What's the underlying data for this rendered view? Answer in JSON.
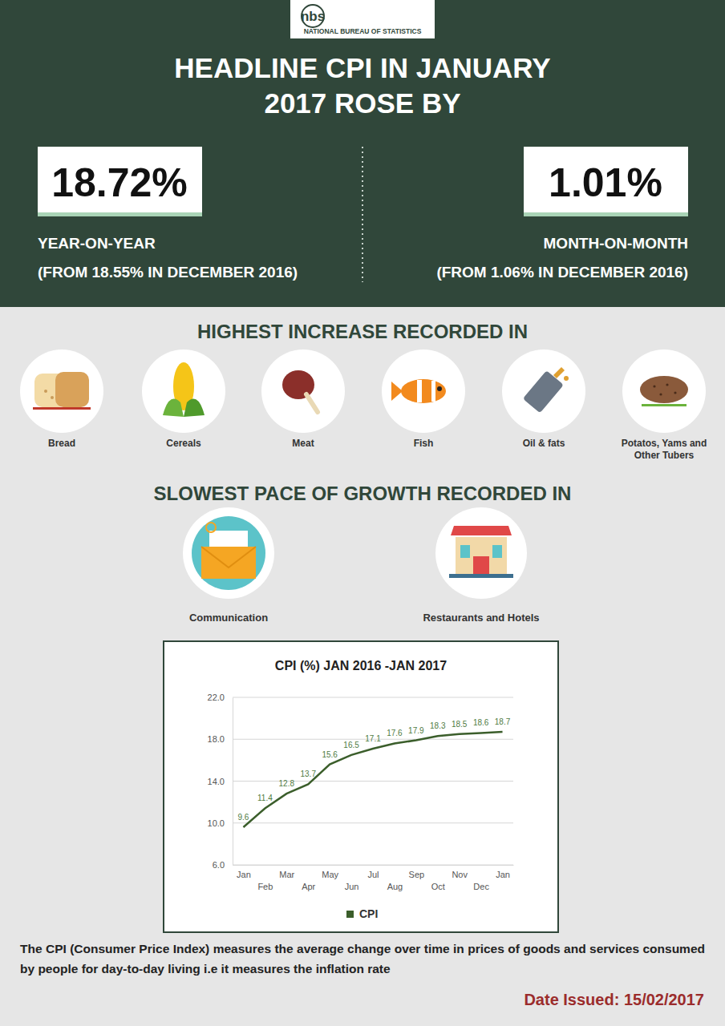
{
  "header": {
    "logo": "nbs",
    "agency": "NATIONAL BUREAU OF STATISTICS",
    "title_line1": "HEADLINE CPI IN JANUARY",
    "title_line2": "2017 ROSE BY"
  },
  "yoy": {
    "figure": "18.72%",
    "label": "YEAR-ON-YEAR",
    "note": "(FROM 18.55% IN DECEMBER 2016)"
  },
  "mom": {
    "figure": "1.01%",
    "label": "MONTH-ON-MONTH",
    "note": "(FROM 1.06% IN DECEMBER 2016)"
  },
  "highest": {
    "heading": "HIGHEST INCREASE RECORDED IN",
    "items": [
      "Bread",
      "Cereals",
      "Meat",
      "Fish",
      "Oil & fats",
      "Potatos, Yams and Other Tubers"
    ]
  },
  "slowest": {
    "heading": "SLOWEST PACE OF GROWTH RECORDED IN",
    "items": [
      "Communication",
      "Restaurants and Hotels"
    ]
  },
  "chart_data": {
    "type": "line",
    "title": "CPI (%) JAN 2016 -JAN 2017",
    "categories": [
      "Jan",
      "Feb",
      "Mar",
      "Apr",
      "May",
      "Jun",
      "Jul",
      "Aug",
      "Sep",
      "Oct",
      "Nov",
      "Dec",
      "Jan"
    ],
    "series": [
      {
        "name": "CPI",
        "color": "#3b5e2b",
        "values": [
          9.6,
          11.4,
          12.8,
          13.7,
          15.6,
          16.5,
          17.1,
          17.6,
          17.9,
          18.3,
          18.5,
          18.6,
          18.7
        ]
      }
    ],
    "ylim": [
      6,
      22
    ],
    "yticks": [
      {
        "value": 6,
        "label": "6.0"
      },
      {
        "value": 10,
        "label": "10.0"
      },
      {
        "value": 14,
        "label": "14.0"
      },
      {
        "value": 18,
        "label": "18.0"
      },
      {
        "value": 22,
        "label": "22.0"
      }
    ],
    "grid": true,
    "data_labels": true,
    "legend": "bottom"
  },
  "footer": {
    "definition": "The CPI (Consumer Price Index) measures the average change over time in prices of goods and services consumed by people for day-to-day living i.e it measures the inflation rate",
    "date": "Date Issued: 15/02/2017"
  }
}
